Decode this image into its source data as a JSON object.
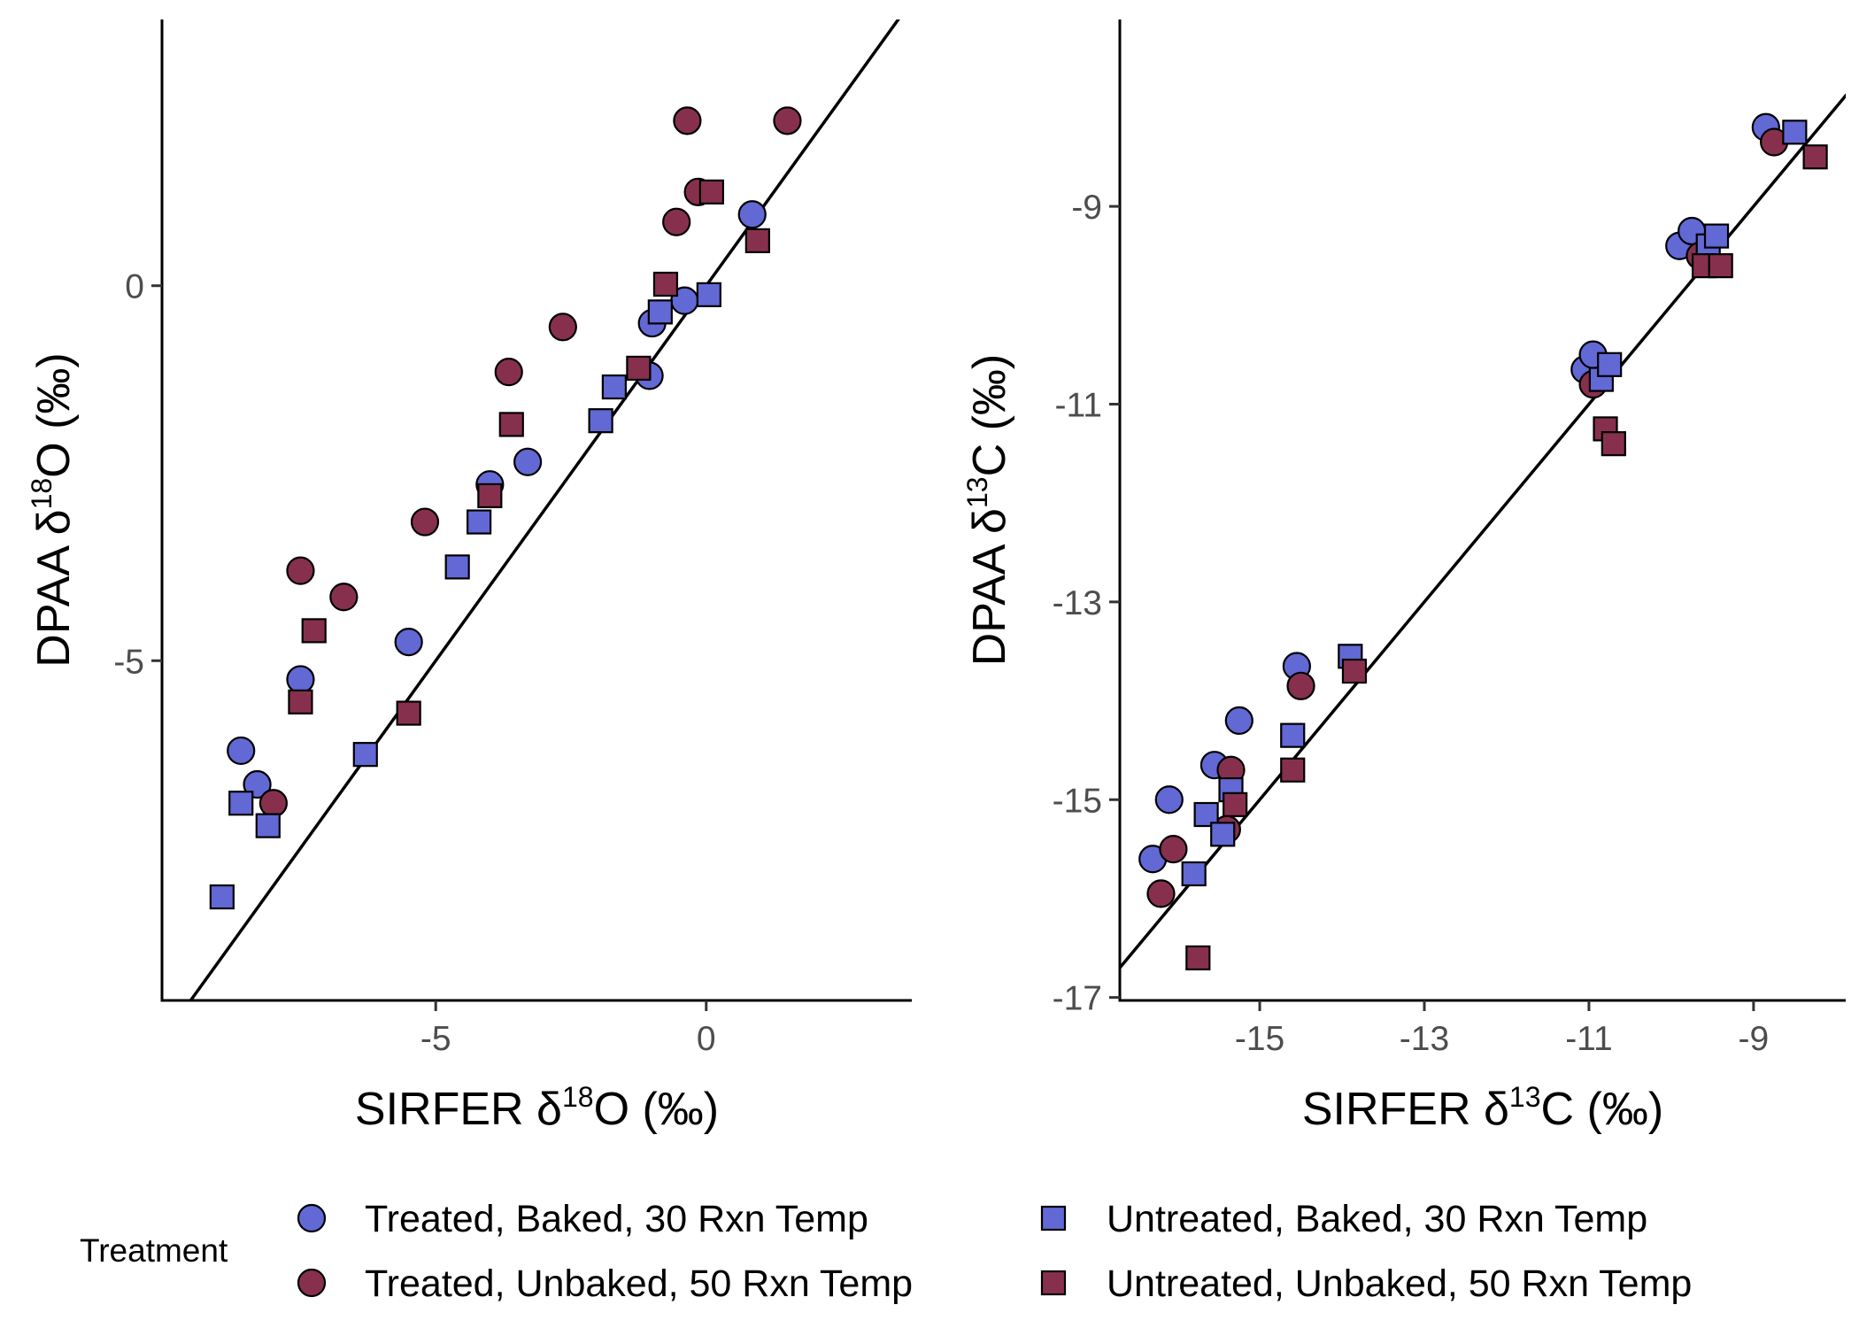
{
  "colors": {
    "treated_baked_30": "#6268d4",
    "treated_unbaked_50": "#87304d",
    "untreated_baked_30": "#6268d4",
    "untreated_unbaked_50": "#87304d",
    "stroke": "#000000",
    "tick_label": "#4d4d4d"
  },
  "legend": {
    "title": "Treatment",
    "items": [
      {
        "label": "Treated, Baked, 30 Rxn Temp",
        "shape": "circle",
        "color": "#6268d4"
      },
      {
        "label": "Treated, Unbaked, 50 Rxn Temp",
        "shape": "circle",
        "color": "#87304d"
      },
      {
        "label": "Untreated, Baked, 30 Rxn Temp",
        "shape": "square",
        "color": "#6268d4"
      },
      {
        "label": "Untreated, Unbaked, 50 Rxn Temp",
        "shape": "square",
        "color": "#87304d"
      }
    ]
  },
  "chart_data": [
    {
      "type": "scatter",
      "xlabel": {
        "pre": "SIRFER δ",
        "sup": "18",
        "post": "O (‰)"
      },
      "ylabel": {
        "pre": "DPAA δ",
        "sup": "18",
        "post": "O (‰)"
      },
      "xlim": [
        -10.06,
        3.8
      ],
      "ylim": [
        -9.53,
        3.55
      ],
      "xticks": [
        "-5",
        "0"
      ],
      "yticks": [
        "-5",
        "0"
      ],
      "reference_line": "y = x",
      "series": [
        {
          "name": "Treated, Baked, 30 Rxn Temp",
          "points": [
            [
              -8.6,
              -6.2
            ],
            [
              -8.3,
              -6.65
            ],
            [
              -7.5,
              -5.25
            ],
            [
              -5.5,
              -4.75
            ],
            [
              -4.0,
              -2.65
            ],
            [
              -3.3,
              -2.35
            ],
            [
              -1.05,
              -1.2
            ],
            [
              -1.0,
              -0.5
            ],
            [
              -0.4,
              -0.2
            ],
            [
              0.85,
              0.95
            ]
          ]
        },
        {
          "name": "Treated, Unbaked, 50 Rxn Temp",
          "points": [
            [
              -8.0,
              -6.9
            ],
            [
              -7.5,
              -3.8
            ],
            [
              -6.7,
              -4.15
            ],
            [
              -5.2,
              -3.15
            ],
            [
              -3.65,
              -1.15
            ],
            [
              -2.65,
              -0.55
            ],
            [
              -0.55,
              0.85
            ],
            [
              -0.35,
              2.2
            ],
            [
              -0.15,
              1.25
            ],
            [
              1.5,
              2.2
            ]
          ]
        },
        {
          "name": "Untreated, Baked, 30 Rxn Temp",
          "points": [
            [
              -8.95,
              -8.15
            ],
            [
              -8.6,
              -6.9
            ],
            [
              -8.1,
              -7.2
            ],
            [
              -6.3,
              -6.25
            ],
            [
              -4.6,
              -3.75
            ],
            [
              -4.2,
              -3.15
            ],
            [
              -1.95,
              -1.8
            ],
            [
              -1.7,
              -1.35
            ],
            [
              -0.85,
              -0.35
            ],
            [
              0.05,
              -0.12
            ]
          ]
        },
        {
          "name": "Untreated, Unbaked, 50 Rxn Temp",
          "points": [
            [
              -7.5,
              -5.55
            ],
            [
              -7.25,
              -4.6
            ],
            [
              -5.5,
              -5.7
            ],
            [
              -4.0,
              -2.8
            ],
            [
              -3.6,
              -1.85
            ],
            [
              -1.25,
              -1.1
            ],
            [
              -0.75,
              0.02
            ],
            [
              0.1,
              1.25
            ],
            [
              0.95,
              0.6
            ]
          ]
        }
      ]
    },
    {
      "type": "scatter",
      "xlabel": {
        "pre": "SIRFER δ",
        "sup": "13",
        "post": "C (‰)"
      },
      "ylabel": {
        "pre": "DPAA δ",
        "sup": "13",
        "post": "C (‰)"
      },
      "xlim": [
        -16.7,
        -7.88
      ],
      "ylim": [
        -17.03,
        -7.11
      ],
      "xticks": [
        "-15",
        "-13",
        "-11",
        "-9"
      ],
      "yticks": [
        "-17",
        "-15",
        "-13",
        "-11",
        "-9"
      ],
      "reference_line": "y = x",
      "series": [
        {
          "name": "Treated, Baked, 30 Rxn Temp",
          "points": [
            [
              -16.3,
              -15.6
            ],
            [
              -16.1,
              -15.0
            ],
            [
              -15.55,
              -14.65
            ],
            [
              -15.25,
              -14.2
            ],
            [
              -14.55,
              -13.65
            ],
            [
              -11.05,
              -10.65
            ],
            [
              -10.95,
              -10.5
            ],
            [
              -9.9,
              -9.4
            ],
            [
              -9.75,
              -9.25
            ],
            [
              -8.85,
              -8.2
            ]
          ]
        },
        {
          "name": "Treated, Unbaked, 50 Rxn Temp",
          "points": [
            [
              -16.2,
              -15.95
            ],
            [
              -16.05,
              -15.5
            ],
            [
              -15.4,
              -15.3
            ],
            [
              -15.35,
              -14.7
            ],
            [
              -14.5,
              -13.85
            ],
            [
              -10.95,
              -10.8
            ],
            [
              -9.65,
              -9.5
            ],
            [
              -8.75,
              -8.35
            ]
          ]
        },
        {
          "name": "Untreated, Baked, 30 Rxn Temp",
          "points": [
            [
              -15.8,
              -15.75
            ],
            [
              -15.65,
              -15.15
            ],
            [
              -15.45,
              -15.35
            ],
            [
              -15.35,
              -14.9
            ],
            [
              -14.6,
              -14.35
            ],
            [
              -13.9,
              -13.55
            ],
            [
              -10.85,
              -10.75
            ],
            [
              -10.75,
              -10.6
            ],
            [
              -9.55,
              -9.4
            ],
            [
              -9.45,
              -9.3
            ],
            [
              -8.5,
              -8.25
            ]
          ]
        },
        {
          "name": "Untreated, Unbaked, 50 Rxn Temp",
          "points": [
            [
              -15.75,
              -16.6
            ],
            [
              -15.3,
              -15.05
            ],
            [
              -14.6,
              -14.7
            ],
            [
              -13.85,
              -13.7
            ],
            [
              -10.8,
              -11.25
            ],
            [
              -10.7,
              -11.4
            ],
            [
              -9.6,
              -9.6
            ],
            [
              -9.4,
              -9.6
            ],
            [
              -8.25,
              -8.5
            ]
          ]
        }
      ]
    }
  ]
}
